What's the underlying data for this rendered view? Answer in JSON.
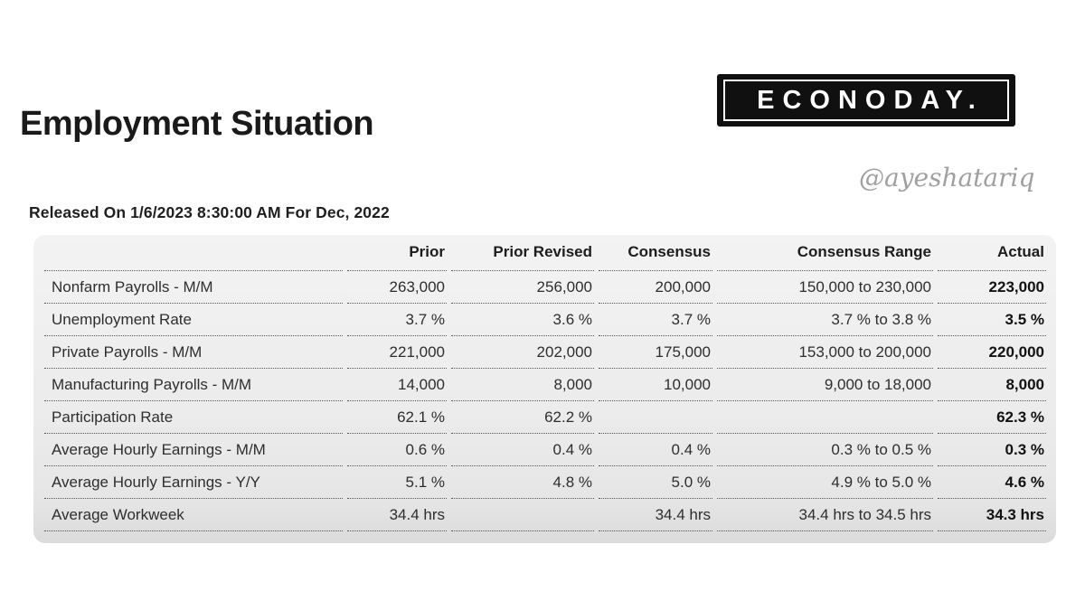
{
  "page": {
    "title": "Employment Situation",
    "released_on": "Released On 1/6/2023 8:30:00 AM For Dec, 2022",
    "watermark": "@ayeshatariq"
  },
  "logo": {
    "text": "ECONODAY."
  },
  "colors": {
    "logo_bg": "#101010",
    "logo_text": "#ffffff",
    "table_bg_top": "#f3f3f3",
    "table_bg_bottom": "#dbdbdb",
    "dotted_line": "#555555",
    "body_text": "#2e2e2e",
    "header_text": "#1d1d1d",
    "actual_text": "#121212",
    "watermark_text": "#a0a0a0"
  },
  "table": {
    "columns": [
      "",
      "Prior",
      "Prior Revised",
      "Consensus",
      "Consensus Range",
      "Actual"
    ],
    "rows": [
      {
        "label": "Nonfarm Payrolls - M/M",
        "values": [
          "263,000",
          "256,000",
          "200,000",
          "150,000 to 230,000",
          "223,000"
        ]
      },
      {
        "label": "Unemployment Rate",
        "values": [
          "3.7 %",
          "3.6 %",
          "3.7 %",
          "3.7 % to 3.8 %",
          "3.5 %"
        ]
      },
      {
        "label": "Private Payrolls - M/M",
        "values": [
          "221,000",
          "202,000",
          "175,000",
          "153,000 to 200,000",
          "220,000"
        ]
      },
      {
        "label": "Manufacturing Payrolls - M/M",
        "values": [
          "14,000",
          "8,000",
          "10,000",
          "9,000 to 18,000",
          "8,000"
        ]
      },
      {
        "label": "Participation Rate",
        "values": [
          "62.1 %",
          "62.2 %",
          "",
          "",
          "62.3 %"
        ]
      },
      {
        "label": "Average Hourly Earnings - M/M",
        "values": [
          "0.6 %",
          "0.4 %",
          "0.4 %",
          "0.3 % to 0.5 %",
          "0.3 %"
        ]
      },
      {
        "label": "Average Hourly Earnings - Y/Y",
        "values": [
          "5.1 %",
          "4.8 %",
          "5.0 %",
          "4.9 % to 5.0 %",
          "4.6 %"
        ]
      },
      {
        "label": "Average Workweek",
        "values": [
          "34.4 hrs",
          "",
          "34.4 hrs",
          "34.4 hrs to 34.5 hrs",
          "34.3 hrs"
        ]
      }
    ]
  }
}
